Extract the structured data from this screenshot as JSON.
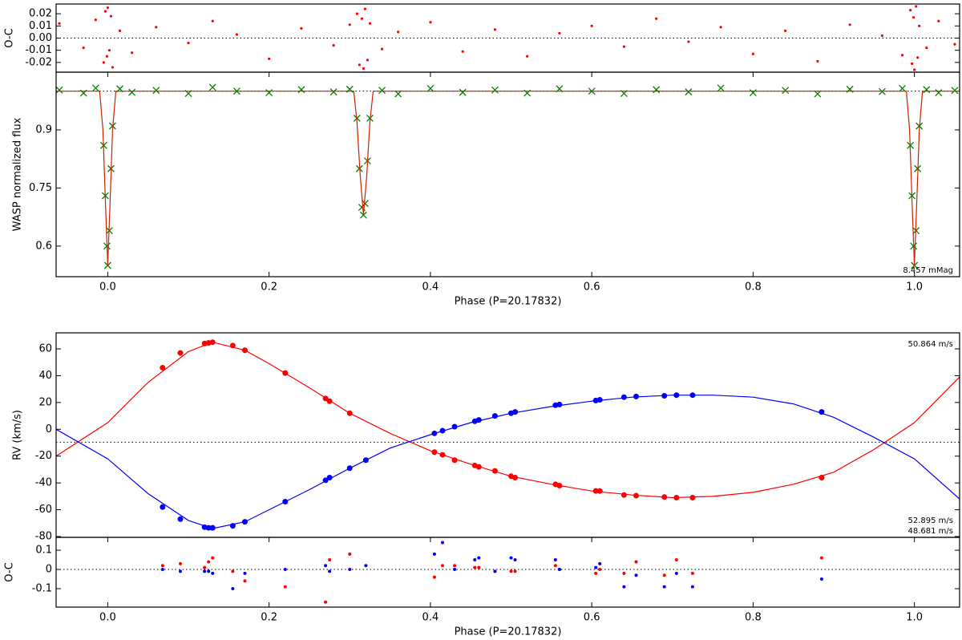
{
  "chart_data": [
    {
      "type": "scatter",
      "ylabel": "O-C",
      "xlim": [
        -0.064,
        1.056
      ],
      "ylim": [
        -0.028,
        0.028
      ],
      "yticks": [
        0.02,
        0.01,
        {
          "value": 0,
          "label": "0.00"
        },
        -0.01,
        -0.02
      ],
      "hlines": [
        0
      ],
      "series": [
        {
          "name": "WASP residuals",
          "color": "#ff0000",
          "style": "dot",
          "size": 1.6,
          "x": [
            -0.06,
            -0.03,
            -0.015,
            -0.005,
            -0.003,
            -0.001,
            0,
            0.002,
            0.004,
            0.006,
            0.015,
            0.03,
            0.06,
            0.1,
            0.13,
            0.16,
            0.2,
            0.24,
            0.28,
            0.3,
            0.309,
            0.312,
            0.315,
            0.317,
            0.319,
            0.322,
            0.325,
            0.34,
            0.36,
            0.4,
            0.44,
            0.48,
            0.52,
            0.56,
            0.6,
            0.64,
            0.68,
            0.72,
            0.76,
            0.8,
            0.84,
            0.88,
            0.92,
            0.96,
            0.985,
            0.995,
            0.997,
            0.999,
            1.0,
            1.002,
            1.004,
            1.006,
            1.015,
            1.03,
            1.05
          ],
          "values": [
            0.012,
            -0.008,
            0.015,
            -0.02,
            0.022,
            -0.015,
            0.025,
            -0.01,
            0.018,
            -0.024,
            0.006,
            -0.012,
            0.009,
            -0.004,
            0.014,
            0.003,
            -0.017,
            0.008,
            -0.006,
            0.011,
            0.02,
            -0.022,
            0.016,
            -0.025,
            0.024,
            -0.018,
            0.012,
            -0.009,
            0.005,
            0.013,
            -0.011,
            0.007,
            -0.015,
            0.004,
            0.01,
            -0.007,
            0.016,
            -0.003,
            0.009,
            -0.013,
            0.006,
            -0.019,
            0.011,
            0.002,
            -0.014,
            0.023,
            -0.021,
            0.017,
            -0.026,
            0.026,
            -0.016,
            0.01,
            -0.008,
            0.014,
            -0.005
          ]
        }
      ]
    },
    {
      "type": "line",
      "xlabel": "Phase (P=20.17832)",
      "ylabel": "WASP normalized flux",
      "xlim": [
        -0.064,
        1.056
      ],
      "ylim": [
        0.521,
        1.049
      ],
      "xticks": [
        {
          "value": 0,
          "label": "0.0"
        },
        0.2,
        0.4,
        0.6,
        0.8,
        {
          "value": 1,
          "label": "1.0"
        }
      ],
      "yticks": [
        0.9,
        0.75,
        0.6
      ],
      "hlines": [
        1
      ],
      "annotations": [
        {
          "text": "8.457 mMag",
          "color": "#000000",
          "loc": "lower right"
        }
      ],
      "series": [
        {
          "name": "WASP data",
          "color": "#008000",
          "style": "x",
          "size": 4,
          "x": [
            -0.06,
            -0.03,
            -0.015,
            -0.005,
            -0.003,
            -0.001,
            0,
            0.002,
            0.004,
            0.006,
            0.015,
            0.03,
            0.06,
            0.1,
            0.13,
            0.16,
            0.2,
            0.24,
            0.28,
            0.3,
            0.309,
            0.312,
            0.315,
            0.317,
            0.319,
            0.322,
            0.325,
            0.34,
            0.36,
            0.4,
            0.44,
            0.48,
            0.52,
            0.56,
            0.6,
            0.64,
            0.68,
            0.72,
            0.76,
            0.8,
            0.84,
            0.88,
            0.92,
            0.96,
            0.985,
            0.995,
            0.997,
            0.999,
            1.0,
            1.002,
            1.004,
            1.006,
            1.015,
            1.03,
            1.05
          ],
          "values": [
            1.003,
            0.995,
            1.008,
            0.86,
            0.73,
            0.6,
            0.55,
            0.64,
            0.8,
            0.91,
            1.006,
            0.997,
            1.002,
            0.994,
            1.01,
            1.0,
            0.996,
            1.004,
            0.998,
            1.005,
            0.93,
            0.8,
            0.7,
            0.68,
            0.71,
            0.82,
            0.93,
            1.002,
            0.993,
            1.007,
            0.997,
            1.003,
            0.995,
            1.006,
            1.0,
            0.994,
            1.004,
            0.998,
            1.008,
            0.996,
            1.002,
            0.993,
            1.005,
            0.999,
            1.007,
            0.86,
            0.73,
            0.6,
            0.55,
            0.64,
            0.8,
            0.91,
            1.004,
            0.996,
            1.002
          ]
        },
        {
          "name": "Model",
          "color": "#cc2200",
          "style": "line",
          "x": [
            -0.064,
            -0.01,
            -0.006,
            -0.003,
            0,
            0.003,
            0.006,
            0.01,
            0.305,
            0.309,
            0.313,
            0.317,
            0.321,
            0.325,
            0.329,
            0.99,
            0.994,
            0.997,
            1.0,
            1.003,
            1.006,
            1.01,
            1.056
          ],
          "values": [
            1,
            1,
            0.9,
            0.72,
            0.55,
            0.72,
            0.9,
            1,
            1,
            0.92,
            0.78,
            0.68,
            0.78,
            0.92,
            1,
            1,
            0.9,
            0.72,
            0.55,
            0.72,
            0.9,
            1,
            1
          ]
        }
      ]
    },
    {
      "type": "line",
      "ylabel": "RV (km/s)",
      "xlim": [
        -0.064,
        1.056
      ],
      "ylim": [
        -80.6,
        72
      ],
      "yticks": [
        60,
        40,
        20,
        0,
        -20,
        -40,
        -60,
        -80
      ],
      "hlines": [
        -9.6
      ],
      "annotations": [
        {
          "text": "50.864 m/s",
          "color": "#000000",
          "loc": "upper right"
        },
        {
          "text": "52.895 m/s",
          "color": "#0000ff",
          "loc": "lower right"
        },
        {
          "text": "48.681 m/s",
          "color": "#ff0000",
          "loc": "lower right"
        }
      ],
      "series": [
        {
          "name": "Primary model",
          "color": "#ff0000",
          "style": "line",
          "x": [
            -0.064,
            0,
            0.05,
            0.1,
            0.13,
            0.17,
            0.2,
            0.25,
            0.3,
            0.35,
            0.4,
            0.45,
            0.5,
            0.55,
            0.6,
            0.65,
            0.7,
            0.75,
            0.8,
            0.85,
            0.9,
            0.95,
            1.0,
            1.056
          ],
          "values": [
            -20,
            5,
            35,
            58,
            65,
            59,
            49,
            31,
            12,
            -3,
            -16,
            -26,
            -35,
            -41,
            -46,
            -49,
            -51,
            -50,
            -47,
            -41,
            -32,
            -15,
            5,
            39
          ]
        },
        {
          "name": "Secondary model",
          "color": "#0000ff",
          "style": "line",
          "x": [
            -0.064,
            0,
            0.05,
            0.1,
            0.13,
            0.17,
            0.2,
            0.25,
            0.3,
            0.35,
            0.4,
            0.45,
            0.5,
            0.55,
            0.6,
            0.65,
            0.7,
            0.75,
            0.8,
            0.85,
            0.9,
            0.95,
            1.0,
            1.056
          ],
          "values": [
            0,
            -22,
            -48,
            -68,
            -74,
            -69,
            -60,
            -45,
            -29,
            -14,
            -4,
            5,
            12,
            17,
            21,
            24,
            25.5,
            25.5,
            24,
            19,
            9,
            -6,
            -22,
            -52
          ]
        },
        {
          "name": "Primary RV",
          "color": "#ff0000",
          "style": "dot",
          "size": 3.5,
          "x": [
            0.068,
            0.09,
            0.12,
            0.125,
            0.13,
            0.155,
            0.17,
            0.22,
            0.27,
            0.275,
            0.3,
            0.405,
            0.415,
            0.43,
            0.455,
            0.46,
            0.48,
            0.5,
            0.505,
            0.555,
            0.56,
            0.605,
            0.61,
            0.64,
            0.655,
            0.69,
            0.705,
            0.725,
            0.885
          ],
          "values": [
            46,
            57,
            64,
            64.5,
            65,
            62.5,
            59,
            42,
            23,
            21,
            12,
            -17,
            -19,
            -23,
            -27,
            -28,
            -31,
            -35,
            -36,
            -41,
            -42,
            -46,
            -46,
            -49,
            -49.5,
            -50.5,
            -51,
            -51,
            -36
          ]
        },
        {
          "name": "Secondary RV",
          "color": "#0000ff",
          "style": "dot",
          "size": 3.5,
          "x": [
            0.068,
            0.09,
            0.12,
            0.125,
            0.13,
            0.155,
            0.17,
            0.22,
            0.27,
            0.275,
            0.3,
            0.32,
            0.405,
            0.415,
            0.43,
            0.455,
            0.46,
            0.48,
            0.5,
            0.505,
            0.555,
            0.56,
            0.605,
            0.61,
            0.64,
            0.655,
            0.69,
            0.705,
            0.725,
            0.885
          ],
          "values": [
            -58,
            -67,
            -73,
            -73.5,
            -73.5,
            -72,
            -69,
            -54,
            -38,
            -36,
            -29,
            -23,
            -3,
            -1,
            2,
            6,
            7,
            10,
            12,
            13,
            18,
            18.5,
            21.5,
            22,
            24,
            24.5,
            25,
            25.5,
            25.5,
            13
          ]
        }
      ]
    },
    {
      "type": "scatter",
      "xlabel": "Phase (P=20.17832)",
      "ylabel": "O-C",
      "xlim": [
        -0.064,
        1.056
      ],
      "ylim": [
        -0.196,
        0.167
      ],
      "xticks": [
        {
          "value": 0,
          "label": "0.0"
        },
        0.2,
        0.4,
        0.6,
        0.8,
        {
          "value": 1,
          "label": "1.0"
        }
      ],
      "yticks": [
        0.1,
        0,
        -0.1
      ],
      "hlines": [
        0
      ],
      "series": [
        {
          "name": "Primary residuals",
          "color": "#ff0000",
          "style": "dot",
          "size": 2,
          "x": [
            0.068,
            0.09,
            0.12,
            0.125,
            0.13,
            0.155,
            0.17,
            0.22,
            0.27,
            0.275,
            0.3,
            0.405,
            0.415,
            0.43,
            0.455,
            0.46,
            0.48,
            0.5,
            0.505,
            0.555,
            0.56,
            0.605,
            0.61,
            0.64,
            0.655,
            0.69,
            0.705,
            0.725,
            0.885
          ],
          "values": [
            0.02,
            0.03,
            0.01,
            0.04,
            0.06,
            -0.01,
            -0.06,
            -0.09,
            -0.17,
            0.05,
            0.08,
            -0.04,
            0.02,
            0.02,
            0.01,
            0.01,
            -0.01,
            -0.01,
            -0.01,
            0.02,
            0,
            -0.02,
            0,
            -0.02,
            0.04,
            -0.03,
            0.05,
            -0.02,
            0.06
          ]
        },
        {
          "name": "Secondary residuals",
          "color": "#0000ff",
          "style": "dot",
          "size": 2,
          "x": [
            0.068,
            0.09,
            0.12,
            0.125,
            0.13,
            0.155,
            0.17,
            0.22,
            0.27,
            0.275,
            0.3,
            0.32,
            0.405,
            0.415,
            0.43,
            0.455,
            0.46,
            0.48,
            0.5,
            0.505,
            0.555,
            0.56,
            0.605,
            0.61,
            0.64,
            0.655,
            0.69,
            0.705,
            0.725,
            0.885
          ],
          "values": [
            0,
            -0.01,
            -0.01,
            -0.01,
            -0.02,
            -0.1,
            -0.02,
            0,
            0.02,
            -0.01,
            0,
            0.02,
            0.08,
            0.14,
            0,
            0.05,
            0.06,
            -0.01,
            0.06,
            0.05,
            0.05,
            0,
            0.01,
            0.03,
            -0.09,
            -0.03,
            -0.09,
            -0.02,
            -0.09,
            -0.05
          ]
        }
      ]
    }
  ]
}
